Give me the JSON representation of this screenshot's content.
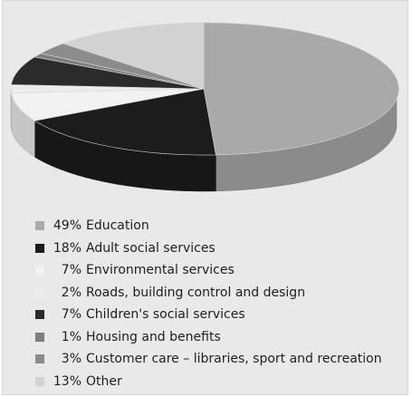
{
  "chart_data": {
    "type": "pie",
    "title": "",
    "slices": [
      {
        "label": "Education",
        "value": 49,
        "display": "49%",
        "color": "#a9a9a9"
      },
      {
        "label": "Adult social services",
        "value": 18,
        "display": "18%",
        "color": "#1c1c1c"
      },
      {
        "label": "Environmental services",
        "value": 7,
        "display": "7%",
        "color": "#f2f2f2"
      },
      {
        "label": "Roads, building control and design",
        "value": 2,
        "display": "2%",
        "color": "#ececec"
      },
      {
        "label": "Children's social services",
        "value": 7,
        "display": "7%",
        "color": "#2b2b2b"
      },
      {
        "label": "Housing and benefits",
        "value": 1,
        "display": "1%",
        "color": "#7e7e7e"
      },
      {
        "label": "Customer care – libraries, sport and recreation",
        "value": 3,
        "display": "3%",
        "color": "#8c8c8c"
      },
      {
        "label": "Other",
        "value": 13,
        "display": "13%",
        "color": "#d2d2d2"
      }
    ],
    "legend_position": "bottom"
  }
}
